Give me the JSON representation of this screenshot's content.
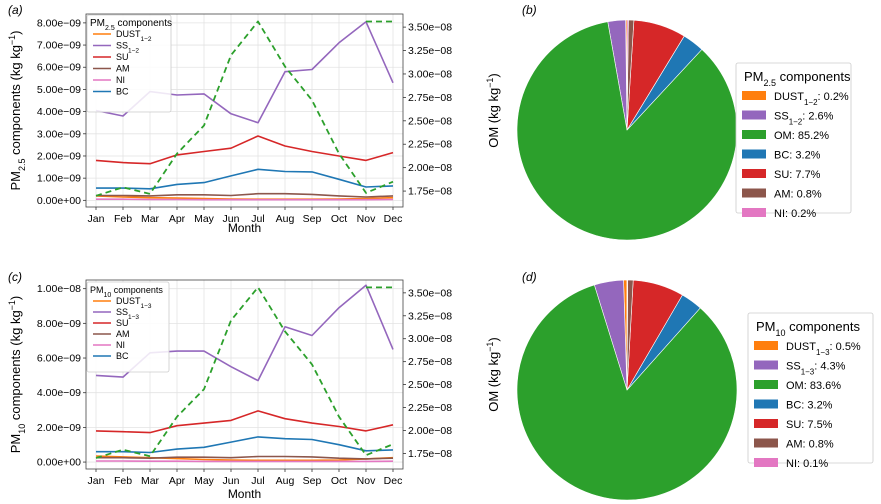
{
  "chart_data": [
    {
      "panel": "(a)",
      "type": "line",
      "xlabel": "Month",
      "ylabel": "PM2.5 components (kg kg−1)",
      "ylabel_parts": {
        "base": "PM",
        "sub": "2.5",
        "rest": " components (kg kg",
        "sup": "−1",
        "close": ")"
      },
      "y2label": "OM (kg kg−1)",
      "y2label_parts": {
        "base": "OM (kg kg",
        "sup": "−1",
        "close": ")"
      },
      "categories": [
        "Jan",
        "Feb",
        "Mar",
        "Apr",
        "May",
        "Jun",
        "Jul",
        "Aug",
        "Sep",
        "Oct",
        "Nov",
        "Dec"
      ],
      "ylim": [
        -3e-10,
        8.4e-09
      ],
      "yticks": [
        0,
        1e-09,
        2e-09,
        3e-09,
        4e-09,
        5e-09,
        6e-09,
        7e-09,
        8e-09
      ],
      "ytick_labels": [
        "0.00e+00",
        "1.00e−09",
        "2.00e−09",
        "3.00e−09",
        "4.00e−09",
        "5.00e−09",
        "6.00e−09",
        "7.00e−09",
        "8.00e−09"
      ],
      "y2lim": [
        1.58e-08,
        3.64e-08
      ],
      "y2ticks": [
        1.75e-08,
        2e-08,
        2.25e-08,
        2.5e-08,
        2.75e-08,
        3e-08,
        3.25e-08,
        3.5e-08
      ],
      "y2tick_labels": [
        "1.75e−08",
        "2.00e−08",
        "2.25e−08",
        "2.50e−08",
        "2.75e−08",
        "3.00e−08",
        "3.25e−08",
        "3.50e−08"
      ],
      "legend_title": {
        "base": "PM",
        "sub": "2.5",
        "rest": " components"
      },
      "series": [
        {
          "name": "DUST1−2",
          "label_parts": {
            "base": "DUST",
            "sub": "1−2"
          },
          "color": "#ff7f0e",
          "axis": "left",
          "values": [
            2e-10,
            1.5e-10,
            1.2e-10,
            1e-10,
            8e-11,
            6e-11,
            5e-11,
            5e-11,
            5e-11,
            6e-11,
            8e-11,
            1.2e-10
          ]
        },
        {
          "name": "SS1−2",
          "label_parts": {
            "base": "SS",
            "sub": "1−2"
          },
          "color": "#9467bd",
          "axis": "left",
          "values": [
            4.05e-09,
            3.8e-09,
            4.9e-09,
            4.75e-09,
            4.8e-09,
            3.9e-09,
            3.5e-09,
            5.8e-09,
            5.9e-09,
            7.1e-09,
            8.05e-09,
            5.3e-09
          ]
        },
        {
          "name": "SU",
          "label_parts": {
            "base": "SU",
            "sub": ""
          },
          "color": "#d62728",
          "axis": "left",
          "values": [
            1.8e-09,
            1.7e-09,
            1.65e-09,
            2.05e-09,
            2.2e-09,
            2.35e-09,
            2.9e-09,
            2.45e-09,
            2.2e-09,
            2e-09,
            1.8e-09,
            2.15e-09
          ]
        },
        {
          "name": "AM",
          "label_parts": {
            "base": "AM",
            "sub": ""
          },
          "color": "#8c564b",
          "axis": "left",
          "values": [
            2.2e-10,
            2.2e-10,
            2e-10,
            2.5e-10,
            2.5e-10,
            2.2e-10,
            3e-10,
            3e-10,
            2.7e-10,
            2e-10,
            1.5e-10,
            2e-10
          ]
        },
        {
          "name": "NI",
          "label_parts": {
            "base": "NI",
            "sub": ""
          },
          "color": "#e377c2",
          "axis": "left",
          "values": [
            5e-11,
            5e-11,
            4e-11,
            4e-11,
            3e-11,
            3e-11,
            3e-11,
            3e-11,
            3e-11,
            3e-11,
            3e-11,
            4e-11
          ]
        },
        {
          "name": "BC",
          "label_parts": {
            "base": "BC",
            "sub": ""
          },
          "color": "#1f77b4",
          "axis": "left",
          "values": [
            5.5e-10,
            5.5e-10,
            5.2e-10,
            7.2e-10,
            8e-10,
            1.1e-09,
            1.4e-09,
            1.3e-09,
            1.28e-09,
            9.5e-10,
            6e-10,
            6.5e-10
          ]
        },
        {
          "name": "OM",
          "color": "#2ca02c",
          "axis": "right",
          "dashed": true,
          "values": [
            1.7e-08,
            1.79e-08,
            1.72e-08,
            2.15e-08,
            2.45e-08,
            3.2e-08,
            3.56e-08,
            3.08e-08,
            2.72e-08,
            2.15e-08,
            1.73e-08,
            1.85e-08
          ],
          "extra_segment": {
            "from": [
              10,
              3.56e-08
            ],
            "to": [
              11,
              3.56e-08
            ]
          }
        }
      ]
    },
    {
      "panel": "(b)",
      "type": "pie",
      "legend_title": {
        "base": "PM",
        "sub": "2.5",
        "rest": " components"
      },
      "slices": [
        {
          "label": "DUST1−2: 0.2%",
          "label_parts": {
            "base": "DUST",
            "sub": "1−2",
            "rest": ": 0.2%"
          },
          "value": 0.2,
          "color": "#ff7f0e"
        },
        {
          "label": "SS1−2: 2.6%",
          "label_parts": {
            "base": "SS",
            "sub": "1−2",
            "rest": ": 2.6%"
          },
          "value": 2.6,
          "color": "#9467bd"
        },
        {
          "label": "OM: 85.2%",
          "label_parts": {
            "base": "OM",
            "sub": "",
            "rest": ": 85.2%"
          },
          "value": 85.2,
          "color": "#2ca02c"
        },
        {
          "label": "BC: 3.2%",
          "label_parts": {
            "base": "BC",
            "sub": "",
            "rest": ": 3.2%"
          },
          "value": 3.2,
          "color": "#1f77b4"
        },
        {
          "label": "SU: 7.7%",
          "label_parts": {
            "base": "SU",
            "sub": "",
            "rest": ": 7.7%"
          },
          "value": 7.7,
          "color": "#d62728"
        },
        {
          "label": "AM: 0.8%",
          "label_parts": {
            "base": "AM",
            "sub": "",
            "rest": ": 0.8%"
          },
          "value": 0.8,
          "color": "#8c564b"
        },
        {
          "label": "NI: 0.2%",
          "label_parts": {
            "base": "NI",
            "sub": "",
            "rest": ": 0.2%"
          },
          "value": 0.2,
          "color": "#e377c2"
        }
      ]
    },
    {
      "panel": "(c)",
      "type": "line",
      "xlabel": "Month",
      "ylabel": "PM10 components (kg kg−1)",
      "ylabel_parts": {
        "base": "PM",
        "sub": "10",
        "rest": " components (kg kg",
        "sup": "−1",
        "close": ")"
      },
      "y2label": "OM (kg kg−1)",
      "y2label_parts": {
        "base": "OM (kg kg",
        "sup": "−1",
        "close": ")"
      },
      "categories": [
        "Jan",
        "Feb",
        "Mar",
        "Apr",
        "May",
        "Jun",
        "Jul",
        "Aug",
        "Sep",
        "Oct",
        "Nov",
        "Dec"
      ],
      "ylim": [
        -4e-10,
        1.05e-08
      ],
      "yticks": [
        0,
        2e-09,
        4e-09,
        6e-09,
        8e-09,
        1e-08
      ],
      "ytick_labels": [
        "0.00e+00",
        "2.00e−09",
        "4.00e−09",
        "6.00e−09",
        "8.00e−09",
        "1.00e−08"
      ],
      "y2lim": [
        1.58e-08,
        3.64e-08
      ],
      "y2ticks": [
        1.75e-08,
        2e-08,
        2.25e-08,
        2.5e-08,
        2.75e-08,
        3e-08,
        3.25e-08,
        3.5e-08
      ],
      "y2tick_labels": [
        "1.75e−08",
        "2.00e−08",
        "2.25e−08",
        "2.50e−08",
        "2.75e−08",
        "3.00e−08",
        "3.25e−08",
        "3.50e−08"
      ],
      "legend_title": {
        "base": "PM",
        "sub": "10",
        "rest": " components"
      },
      "series": [
        {
          "name": "DUST1−3",
          "label_parts": {
            "base": "DUST",
            "sub": "1−3"
          },
          "color": "#ff7f0e",
          "axis": "left",
          "values": [
            3.5e-10,
            3e-10,
            2.5e-10,
            2e-10,
            1.5e-10,
            1.2e-10,
            1e-10,
            1e-10,
            1e-10,
            1.2e-10,
            1.8e-10,
            2.5e-10
          ]
        },
        {
          "name": "SS1−3",
          "label_parts": {
            "base": "SS",
            "sub": "1−3"
          },
          "color": "#9467bd",
          "axis": "left",
          "values": [
            5e-09,
            4.9e-09,
            6.3e-09,
            6.4e-09,
            6.4e-09,
            5.5e-09,
            4.7e-09,
            7.8e-09,
            7.3e-09,
            8.9e-09,
            1.02e-08,
            6.5e-09
          ]
        },
        {
          "name": "SU",
          "label_parts": {
            "base": "SU",
            "sub": ""
          },
          "color": "#d62728",
          "axis": "left",
          "values": [
            1.8e-09,
            1.75e-09,
            1.7e-09,
            2.1e-09,
            2.25e-09,
            2.4e-09,
            2.95e-09,
            2.5e-09,
            2.25e-09,
            2.05e-09,
            1.8e-09,
            2.15e-09
          ]
        },
        {
          "name": "AM",
          "label_parts": {
            "base": "AM",
            "sub": ""
          },
          "color": "#8c564b",
          "axis": "left",
          "values": [
            2.5e-10,
            2.5e-10,
            2.2e-10,
            2.8e-10,
            2.8e-10,
            2.5e-10,
            3.2e-10,
            3.2e-10,
            3e-10,
            2.2e-10,
            1.8e-10,
            2.2e-10
          ]
        },
        {
          "name": "NI",
          "label_parts": {
            "base": "NI",
            "sub": ""
          },
          "color": "#e377c2",
          "axis": "left",
          "values": [
            6e-11,
            6e-11,
            5e-11,
            5e-11,
            4e-11,
            4e-11,
            4e-11,
            4e-11,
            4e-11,
            4e-11,
            4e-11,
            5e-11
          ]
        },
        {
          "name": "BC",
          "label_parts": {
            "base": "BC",
            "sub": ""
          },
          "color": "#1f77b4",
          "axis": "left",
          "values": [
            6e-10,
            6e-10,
            5.5e-10,
            7.5e-10,
            8.5e-10,
            1.15e-09,
            1.45e-09,
            1.35e-09,
            1.3e-09,
            1e-09,
            6.5e-10,
            7e-10
          ]
        },
        {
          "name": "OM",
          "color": "#2ca02c",
          "axis": "right",
          "dashed": true,
          "values": [
            1.7e-08,
            1.79e-08,
            1.72e-08,
            2.15e-08,
            2.45e-08,
            3.2e-08,
            3.56e-08,
            3.08e-08,
            2.72e-08,
            2.15e-08,
            1.73e-08,
            1.85e-08
          ],
          "extra_segment": {
            "from": [
              10,
              3.56e-08
            ],
            "to": [
              11,
              3.56e-08
            ]
          }
        }
      ]
    },
    {
      "panel": "(d)",
      "type": "pie",
      "legend_title": {
        "base": "PM",
        "sub": "10",
        "rest": " components"
      },
      "slices": [
        {
          "label": "DUST1−3: 0.5%",
          "label_parts": {
            "base": "DUST",
            "sub": "1−3",
            "rest": ": 0.5%"
          },
          "value": 0.5,
          "color": "#ff7f0e"
        },
        {
          "label": "SS1−3: 4.3%",
          "label_parts": {
            "base": "SS",
            "sub": "1−3",
            "rest": ": 4.3%"
          },
          "value": 4.3,
          "color": "#9467bd"
        },
        {
          "label": "OM: 83.6%",
          "label_parts": {
            "base": "OM",
            "sub": "",
            "rest": ": 83.6%"
          },
          "value": 83.6,
          "color": "#2ca02c"
        },
        {
          "label": "BC: 3.2%",
          "label_parts": {
            "base": "BC",
            "sub": "",
            "rest": ": 3.2%"
          },
          "value": 3.2,
          "color": "#1f77b4"
        },
        {
          "label": "SU: 7.5%",
          "label_parts": {
            "base": "SU",
            "sub": "",
            "rest": ": 7.5%"
          },
          "value": 7.5,
          "color": "#d62728"
        },
        {
          "label": "AM: 0.8%",
          "label_parts": {
            "base": "AM",
            "sub": "",
            "rest": ": 0.8%"
          },
          "value": 0.8,
          "color": "#8c564b"
        },
        {
          "label": "NI: 0.1%",
          "label_parts": {
            "base": "NI",
            "sub": "",
            "rest": ": 0.1%"
          },
          "value": 0.1,
          "color": "#e377c2"
        }
      ]
    }
  ]
}
